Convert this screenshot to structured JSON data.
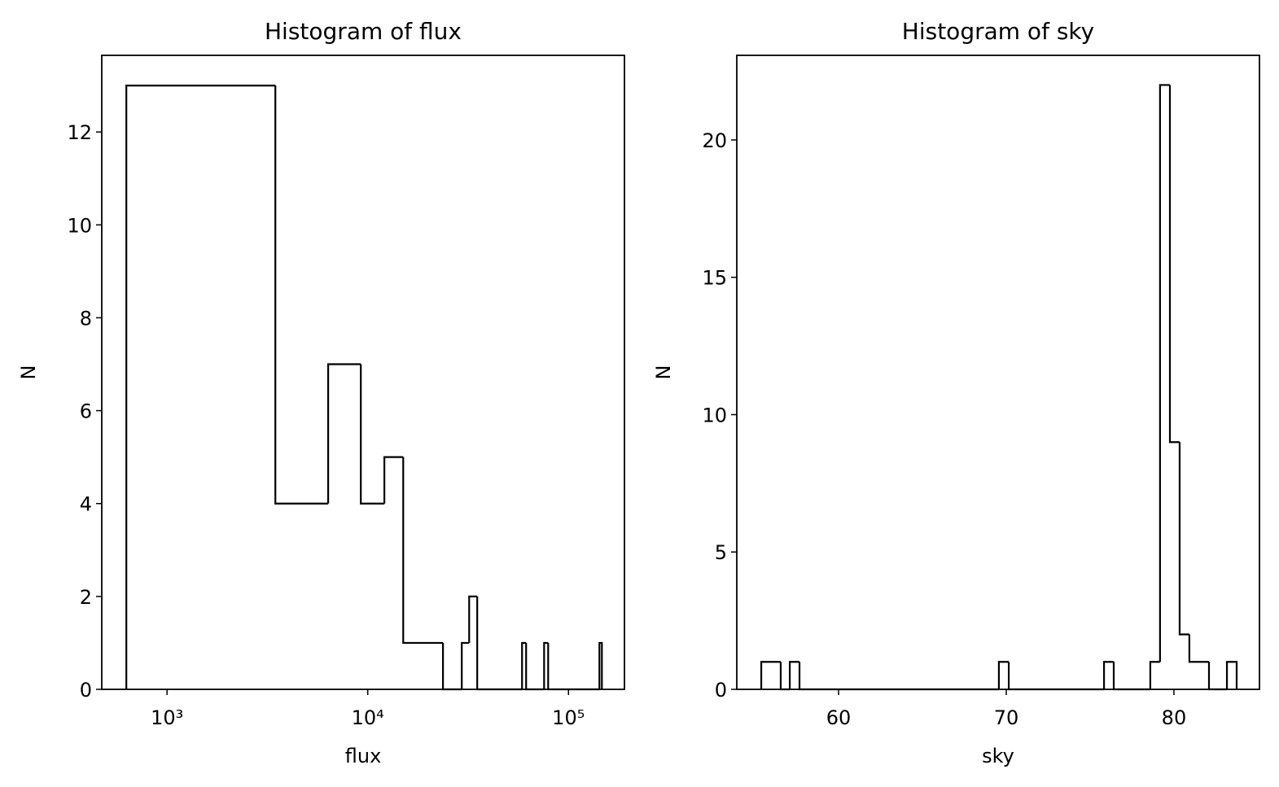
{
  "chart_data": [
    {
      "type": "histogram",
      "title": "Histogram of flux",
      "xlabel": "flux",
      "ylabel": "N",
      "xscale": "log",
      "color": "#000000",
      "bins": [
        627,
        3465,
        6350,
        9235,
        12100,
        15020,
        23700,
        29400,
        32000,
        35100,
        58700,
        61500,
        75600,
        79200,
        142600,
        146700
      ],
      "values": [
        13,
        4,
        7,
        4,
        5,
        1,
        0,
        1,
        2,
        0,
        1,
        0,
        1,
        0,
        1
      ],
      "xlim": [
        473,
        190000
      ],
      "ylim": [
        0,
        13.65
      ],
      "xticks": [
        {
          "value": 1000,
          "label": "10³"
        },
        {
          "value": 10000,
          "label": "10⁴"
        },
        {
          "value": 100000,
          "label": "10⁵"
        }
      ],
      "yticks": [
        0,
        2,
        4,
        6,
        8,
        10,
        12
      ]
    },
    {
      "type": "histogram",
      "title": "Histogram of sky",
      "xlabel": "sky",
      "ylabel": "N",
      "xscale": "linear",
      "color": "#000000",
      "bins": [
        55.39,
        56.55,
        57.09,
        57.67,
        69.56,
        70.15,
        75.83,
        76.41,
        78.59,
        79.17,
        79.76,
        80.34,
        80.92,
        82.09,
        83.16,
        83.74
      ],
      "values": [
        1,
        0,
        1,
        0,
        1,
        0,
        1,
        0,
        1,
        22,
        9,
        2,
        1,
        0,
        1
      ],
      "xlim": [
        53.93,
        85.1
      ],
      "ylim": [
        0,
        23.08
      ],
      "xticks": [
        60,
        70,
        80
      ],
      "yticks": [
        0,
        5,
        10,
        15,
        20
      ]
    }
  ]
}
